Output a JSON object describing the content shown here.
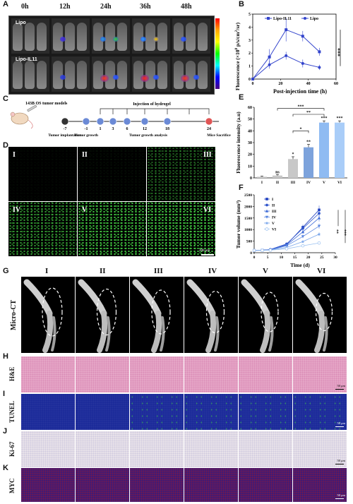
{
  "panels": {
    "A": "A",
    "B": "B",
    "C": "C",
    "D": "D",
    "E": "E",
    "F": "F",
    "G": "G",
    "H": "H",
    "I": "I",
    "J": "J",
    "K": "K"
  },
  "panel_a": {
    "time_labels": [
      "0h",
      "12h",
      "24h",
      "36h",
      "48h"
    ],
    "rows": [
      "Lipo",
      "Lipo-IL11"
    ],
    "colorbar_colors": [
      "#ff0000",
      "#ffa500",
      "#ffff00",
      "#00ff00",
      "#00ffff",
      "#0000ff",
      "#4b0082"
    ]
  },
  "panel_b": {
    "ylabel_main": "Fluorescence (×10",
    "ylabel_sup": "8",
    "ylabel_rest": " p/s/cm",
    "ylabel_sup2": "2",
    "ylabel_end": "/sr)",
    "xlabel": "Post-injection time (h)",
    "sig": "***"
  },
  "panel_c": {
    "title": "143B OS tumor models",
    "injection_label": "Injection of hydrogel",
    "days": [
      "-7",
      "-1",
      "1",
      "3",
      "6",
      "12",
      "18",
      "24"
    ],
    "captions": [
      "Tumor implantation",
      "Tumor growth",
      "Tumor growth analysis",
      "Mice Sacrifice"
    ]
  },
  "panel_d": {
    "groups": [
      "I",
      "II",
      "III",
      "IV",
      "V",
      "VI"
    ],
    "scalebar": "200 μm"
  },
  "panel_e": {
    "ylabel": "Fluorescence intensity (a.u)",
    "sig_brackets": [
      "***",
      "**",
      "*"
    ]
  },
  "panel_f": {
    "ylabel": "Tumor volume (mm³)",
    "xlabel": "Time (d)",
    "sig": [
      "**",
      "***"
    ]
  },
  "panel_g": {
    "groups": [
      "I",
      "II",
      "III",
      "IV",
      "V",
      "VI"
    ],
    "row_label": "Micro-CT"
  },
  "stains": [
    "H&E",
    "TUNEL",
    "Ki-67",
    "MYC"
  ],
  "stain_scalebar": "50 μm",
  "chart_data": [
    {
      "type": "line",
      "x": [
        0,
        12,
        24,
        36,
        48
      ],
      "xlim": [
        0,
        60
      ],
      "ylim": [
        0,
        5
      ],
      "xticks": [
        0,
        20,
        40,
        60
      ],
      "yticks": [
        0,
        1,
        2,
        3,
        4,
        5
      ],
      "series": [
        {
          "name": "Lipo-IL11",
          "color": "#3344cc",
          "values": [
            0,
            1.7,
            3.8,
            3.3,
            2.1
          ],
          "errors": [
            0,
            0.6,
            0.9,
            0.4,
            0.3
          ]
        },
        {
          "name": "Lipo",
          "color": "#3344cc",
          "values": [
            0,
            1.1,
            1.8,
            1.2,
            0.9
          ],
          "errors": [
            0,
            0.3,
            0.3,
            0.3,
            0.2
          ]
        }
      ]
    },
    {
      "type": "bar",
      "categories": [
        "I",
        "II",
        "III",
        "IV",
        "V",
        "VI"
      ],
      "values": [
        1,
        2,
        16,
        26,
        47,
        47
      ],
      "errors": [
        0.5,
        0.8,
        2,
        2.5,
        1.5,
        1.5
      ],
      "colors": [
        "#c8c8c8",
        "#c8c8c8",
        "#c8c8c8",
        "#7da3dc",
        "#8fbbf2",
        "#a9cdf8"
      ],
      "labels": [
        "",
        "ns",
        "*",
        "**",
        "***",
        "***"
      ],
      "ylim": [
        0,
        60
      ],
      "yticks": [
        0,
        10,
        20,
        30,
        40,
        50,
        60
      ]
    },
    {
      "type": "line",
      "x": [
        0,
        3,
        6,
        12,
        18,
        24
      ],
      "xlim": [
        0,
        30
      ],
      "ylim": [
        0,
        2500
      ],
      "xticks": [
        0,
        5,
        10,
        15,
        20,
        25,
        30
      ],
      "yticks": [
        0,
        500,
        1000,
        1500,
        2000,
        2500
      ],
      "series": [
        {
          "name": "I",
          "marker": "square",
          "color": "#1f3fbf",
          "values": [
            100,
            110,
            130,
            350,
            1100,
            1850
          ]
        },
        {
          "name": "II",
          "marker": "circle",
          "color": "#2f55cc",
          "values": [
            100,
            110,
            140,
            380,
            1050,
            1700
          ]
        },
        {
          "name": "III",
          "marker": "triangle",
          "color": "#3e6bd6",
          "values": [
            100,
            110,
            130,
            330,
            900,
            1500
          ]
        },
        {
          "name": "IV",
          "marker": "tri-down",
          "color": "#5a86e0",
          "values": [
            100,
            105,
            120,
            300,
            700,
            1150
          ]
        },
        {
          "name": "V",
          "marker": "star",
          "color": "#7aa6ea",
          "values": [
            100,
            105,
            115,
            230,
            480,
            800
          ]
        },
        {
          "name": "VI",
          "marker": "open-circle",
          "color": "#9bc1f0",
          "values": [
            100,
            100,
            110,
            170,
            300,
            420
          ]
        }
      ]
    }
  ]
}
